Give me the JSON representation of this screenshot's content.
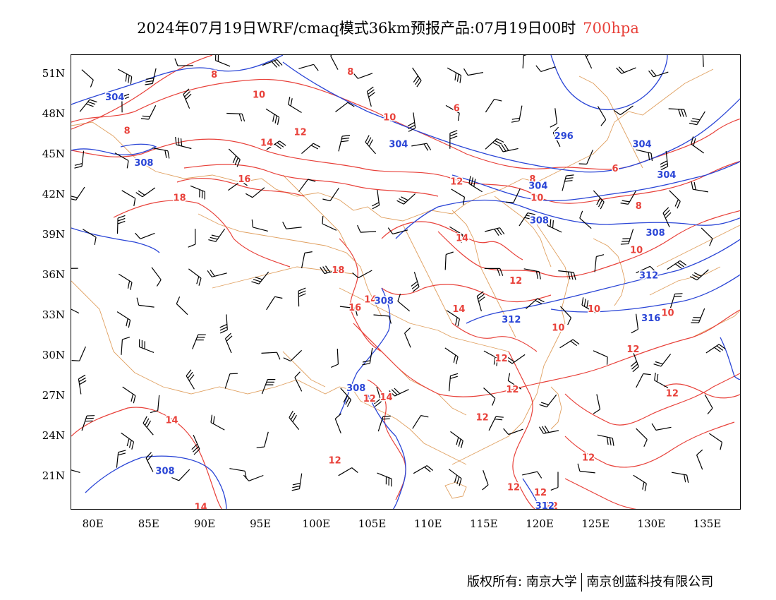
{
  "header": {
    "title": "2024年07月19日WRF/cmaq模式36km预报产品:07月19日00时",
    "level": "700hpa"
  },
  "axes": {
    "lat_labels": [
      "51N",
      "48N",
      "45N",
      "42N",
      "39N",
      "36N",
      "33N",
      "30N",
      "27N",
      "24N",
      "21N"
    ],
    "lon_labels": [
      "80E",
      "85E",
      "90E",
      "95E",
      "100E",
      "105E",
      "110E",
      "115E",
      "120E",
      "125E",
      "130E",
      "135E"
    ]
  },
  "colors": {
    "temperature": "#e8413a",
    "geopotential": "#2a45d6",
    "boundary": "#e0a060",
    "wind": "#000000"
  },
  "map": {
    "lon_range": [
      78,
      138
    ],
    "lat_range": [
      18.5,
      52.5
    ]
  },
  "contour_labels": {
    "temperature": [
      {
        "text": "8",
        "lon": 90.8,
        "lat": 51.0
      },
      {
        "text": "8",
        "lon": 83.0,
        "lat": 46.8
      },
      {
        "text": "10",
        "lon": 94.8,
        "lat": 49.5
      },
      {
        "text": "8",
        "lon": 103.0,
        "lat": 51.2
      },
      {
        "text": "10",
        "lon": 106.5,
        "lat": 47.8
      },
      {
        "text": "6",
        "lon": 112.5,
        "lat": 48.5
      },
      {
        "text": "12",
        "lon": 98.5,
        "lat": 46.7
      },
      {
        "text": "14",
        "lon": 95.5,
        "lat": 45.9
      },
      {
        "text": "16",
        "lon": 93.5,
        "lat": 43.2
      },
      {
        "text": "18",
        "lon": 87.7,
        "lat": 41.8
      },
      {
        "text": "12",
        "lon": 112.5,
        "lat": 43.0
      },
      {
        "text": "8",
        "lon": 119.3,
        "lat": 43.2
      },
      {
        "text": "6",
        "lon": 126.7,
        "lat": 44.0
      },
      {
        "text": "10",
        "lon": 119.7,
        "lat": 41.8
      },
      {
        "text": "8",
        "lon": 128.8,
        "lat": 41.2
      },
      {
        "text": "14",
        "lon": 113.0,
        "lat": 38.8
      },
      {
        "text": "10",
        "lon": 128.6,
        "lat": 37.9
      },
      {
        "text": "18",
        "lon": 101.9,
        "lat": 36.4
      },
      {
        "text": "12",
        "lon": 117.8,
        "lat": 35.6
      },
      {
        "text": "14",
        "lon": 104.8,
        "lat": 34.2
      },
      {
        "text": "16",
        "lon": 103.4,
        "lat": 33.6
      },
      {
        "text": "14",
        "lon": 112.7,
        "lat": 33.5
      },
      {
        "text": "10",
        "lon": 124.8,
        "lat": 33.5
      },
      {
        "text": "10",
        "lon": 131.4,
        "lat": 33.2
      },
      {
        "text": "10",
        "lon": 121.6,
        "lat": 32.1
      },
      {
        "text": "12",
        "lon": 116.5,
        "lat": 29.8
      },
      {
        "text": "12",
        "lon": 128.3,
        "lat": 30.5
      },
      {
        "text": "12",
        "lon": 104.7,
        "lat": 26.8
      },
      {
        "text": "14",
        "lon": 106.2,
        "lat": 26.9
      },
      {
        "text": "12",
        "lon": 117.5,
        "lat": 27.5
      },
      {
        "text": "12",
        "lon": 131.8,
        "lat": 27.2
      },
      {
        "text": "12",
        "lon": 114.8,
        "lat": 25.4
      },
      {
        "text": "14",
        "lon": 87.0,
        "lat": 25.2
      },
      {
        "text": "12",
        "lon": 124.3,
        "lat": 22.4
      },
      {
        "text": "12",
        "lon": 101.6,
        "lat": 22.2
      },
      {
        "text": "12",
        "lon": 117.6,
        "lat": 20.2
      },
      {
        "text": "12",
        "lon": 120.0,
        "lat": 19.8
      },
      {
        "text": "14",
        "lon": 89.6,
        "lat": 18.7
      },
      {
        "text": "12",
        "lon": 121.0,
        "lat": 18.8
      }
    ],
    "geopotential": [
      {
        "text": "304",
        "lon": 81.9,
        "lat": 49.3
      },
      {
        "text": "304",
        "lon": 107.3,
        "lat": 45.8
      },
      {
        "text": "296",
        "lon": 122.1,
        "lat": 46.4
      },
      {
        "text": "304",
        "lon": 129.1,
        "lat": 45.8
      },
      {
        "text": "308",
        "lon": 84.5,
        "lat": 44.4
      },
      {
        "text": "304",
        "lon": 131.3,
        "lat": 43.5
      },
      {
        "text": "304",
        "lon": 119.8,
        "lat": 42.7
      },
      {
        "text": "308",
        "lon": 119.9,
        "lat": 40.1
      },
      {
        "text": "308",
        "lon": 130.3,
        "lat": 39.2
      },
      {
        "text": "312",
        "lon": 129.7,
        "lat": 36.0
      },
      {
        "text": "308",
        "lon": 106.0,
        "lat": 34.1
      },
      {
        "text": "312",
        "lon": 117.4,
        "lat": 32.7
      },
      {
        "text": "316",
        "lon": 129.9,
        "lat": 32.8
      },
      {
        "text": "308",
        "lon": 103.5,
        "lat": 27.6
      },
      {
        "text": "308",
        "lon": 86.4,
        "lat": 21.4
      },
      {
        "text": "312",
        "lon": 120.4,
        "lat": 18.8
      }
    ]
  },
  "footer": {
    "copyright_left": "版权所有: 南京大学",
    "copyright_right": "南京创蓝科技有限公司"
  }
}
